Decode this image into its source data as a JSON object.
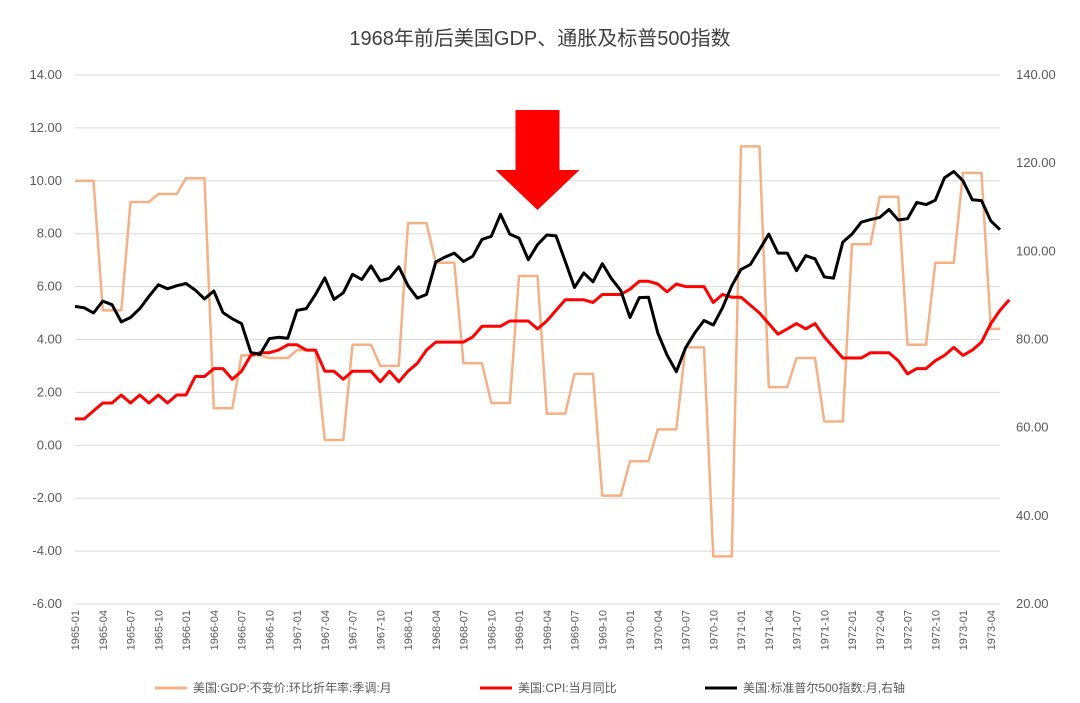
{
  "chart_data": {
    "type": "line",
    "title": "1968年前后美国GDP、通胀及标普500指数",
    "left_axis": {
      "min": -6,
      "max": 14,
      "step": 2,
      "tick_labels": [
        "-6.00",
        "-4.00",
        "-2.00",
        "0.00",
        "2.00",
        "4.00",
        "6.00",
        "8.00",
        "10.00",
        "12.00",
        "14.00"
      ]
    },
    "right_axis": {
      "min": 20,
      "max": 140,
      "step": 20,
      "tick_labels": [
        "20.00",
        "40.00",
        "60.00",
        "80.00",
        "100.00",
        "120.00",
        "140.00"
      ]
    },
    "x_tick_labels": [
      "1965-01",
      "1965-04",
      "1965-07",
      "1965-10",
      "1966-01",
      "1966-04",
      "1966-07",
      "1966-10",
      "1967-01",
      "1967-04",
      "1967-07",
      "1967-10",
      "1968-01",
      "1968-04",
      "1968-07",
      "1968-10",
      "1969-01",
      "1969-04",
      "1969-07",
      "1969-10",
      "1970-01",
      "1970-04",
      "1970-07",
      "1970-10",
      "1971-01",
      "1971-04",
      "1971-07",
      "1971-10",
      "1972-01",
      "1972-04",
      "1972-07",
      "1972-10",
      "1973-01",
      "1973-04"
    ],
    "grid": "horizontal",
    "legend_position": "bottom",
    "annotation": {
      "type": "arrow",
      "direction": "down",
      "at": "1969-03",
      "color": "#ff0000"
    },
    "series": [
      {
        "name": "美国:GDP:不变价:环比折年率:季调:月",
        "axis": "left",
        "color": "#f4b183",
        "step": true,
        "quarters": [
          "1965-01",
          "1965-04",
          "1965-07",
          "1965-10",
          "1966-01",
          "1966-04",
          "1966-07",
          "1966-10",
          "1967-01",
          "1967-04",
          "1967-07",
          "1967-10",
          "1968-01",
          "1968-04",
          "1968-07",
          "1968-10",
          "1969-01",
          "1969-04",
          "1969-07",
          "1969-10",
          "1970-01",
          "1970-04",
          "1970-07",
          "1970-10",
          "1971-01",
          "1971-04",
          "1971-07",
          "1971-10",
          "1972-01",
          "1972-04",
          "1972-07",
          "1972-10",
          "1973-01",
          "1973-04"
        ],
        "values": [
          10.0,
          5.1,
          9.2,
          9.5,
          10.1,
          1.4,
          3.4,
          3.3,
          3.6,
          0.2,
          3.8,
          3.0,
          8.4,
          6.9,
          3.1,
          1.6,
          6.4,
          1.2,
          2.7,
          -1.9,
          -0.6,
          0.6,
          3.7,
          -4.2,
          11.3,
          2.2,
          3.3,
          0.9,
          7.6,
          9.4,
          3.8,
          6.9,
          10.3,
          4.4
        ]
      },
      {
        "name": "美国:CPI:当月同比",
        "axis": "left",
        "color": "#ff0000",
        "start": "1965-01",
        "values": [
          1.0,
          1.0,
          1.3,
          1.6,
          1.6,
          1.9,
          1.6,
          1.9,
          1.6,
          1.9,
          1.6,
          1.9,
          1.9,
          2.6,
          2.6,
          2.9,
          2.9,
          2.5,
          2.8,
          3.4,
          3.5,
          3.5,
          3.6,
          3.8,
          3.8,
          3.6,
          3.6,
          2.8,
          2.8,
          2.5,
          2.8,
          2.8,
          2.8,
          2.4,
          2.8,
          2.4,
          2.8,
          3.1,
          3.6,
          3.9,
          3.9,
          3.9,
          3.9,
          4.1,
          4.5,
          4.5,
          4.5,
          4.7,
          4.7,
          4.7,
          4.4,
          4.7,
          5.1,
          5.5,
          5.5,
          5.5,
          5.4,
          5.7,
          5.7,
          5.7,
          5.9,
          6.2,
          6.2,
          6.1,
          5.8,
          6.1,
          6.0,
          6.0,
          6.0,
          5.4,
          5.7,
          5.6,
          5.6,
          5.3,
          5.0,
          4.6,
          4.2,
          4.4,
          4.6,
          4.4,
          4.6,
          4.1,
          3.7,
          3.3,
          3.3,
          3.3,
          3.5,
          3.5,
          3.5,
          3.2,
          2.7,
          2.9,
          2.9,
          3.2,
          3.4,
          3.7,
          3.4,
          3.6,
          3.9,
          4.6,
          5.1,
          5.5
        ]
      },
      {
        "name": "美国:标准普尔500指数:月,右轴",
        "axis": "right",
        "color": "#000000",
        "start": "1965-01",
        "values": [
          87.5,
          87.2,
          86.0,
          88.7,
          87.9,
          84.0,
          85.0,
          87.0,
          89.8,
          92.4,
          91.5,
          92.2,
          92.7,
          91.2,
          89.2,
          91.0,
          86.1,
          84.7,
          83.6,
          77.1,
          76.6,
          80.2,
          80.5,
          80.3,
          86.6,
          87.0,
          90.2,
          94.0,
          89.1,
          90.6,
          94.8,
          93.6,
          96.7,
          93.3,
          93.9,
          96.5,
          92.2,
          89.4,
          90.2,
          97.6,
          98.7,
          99.6,
          97.7,
          98.9,
          102.7,
          103.4,
          108.4,
          103.9,
          103.0,
          98.1,
          101.5,
          103.7,
          103.5,
          97.7,
          91.8,
          95.1,
          93.1,
          97.2,
          93.8,
          91.1,
          85.0,
          89.5,
          89.6,
          81.5,
          76.5,
          72.7,
          78.1,
          81.5,
          84.3,
          83.3,
          87.2,
          92.2,
          95.9,
          97.0,
          100.4,
          103.9,
          99.6,
          99.6,
          95.6,
          99.0,
          98.3,
          94.2,
          93.9,
          102.1,
          103.9,
          106.6,
          107.2,
          107.7,
          109.5,
          107.1,
          107.4,
          111.1,
          110.6,
          111.6,
          116.7,
          118.1,
          116.0,
          111.7,
          111.5,
          106.9,
          104.9
        ]
      }
    ]
  }
}
